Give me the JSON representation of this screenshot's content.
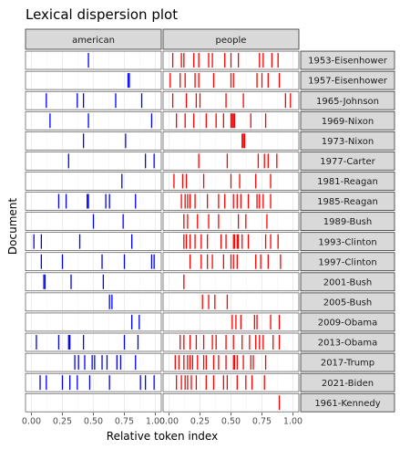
{
  "chart_data": {
    "type": "dispersion",
    "title": "Lexical dispersion plot",
    "xlabel": "Relative token index",
    "ylabel": "Document",
    "xlim": [
      0,
      1
    ],
    "x_ticks": [
      "0.00",
      "0.25",
      "0.50",
      "0.75",
      "1.00"
    ],
    "x_tick_values": [
      0,
      0.25,
      0.5,
      0.75,
      1.0
    ],
    "grid": true,
    "facets": [
      "american",
      "people"
    ],
    "documents": [
      "1953-Eisenhower",
      "1957-Eisenhower",
      "1965-Johnson",
      "1969-Nixon",
      "1973-Nixon",
      "1977-Carter",
      "1981-Reagan",
      "1985-Reagan",
      "1989-Bush",
      "1993-Clinton",
      "1997-Clinton",
      "2001-Bush",
      "2005-Bush",
      "2009-Obama",
      "2013-Obama",
      "2017-Trump",
      "2021-Biden",
      "1961-Kennedy"
    ],
    "series": [
      {
        "facet": "american",
        "color": "#0000ff",
        "occurrences": {
          "1953-Eisenhower": [
            0.46
          ],
          "1957-Eisenhower": [
            0.78,
            0.79
          ],
          "1965-Johnson": [
            0.12,
            0.37,
            0.42,
            0.68,
            0.89
          ],
          "1969-Nixon": [
            0.15,
            0.46,
            0.97
          ],
          "1973-Nixon": [
            0.42,
            0.76
          ],
          "1977-Carter": [
            0.3,
            0.92,
            0.99
          ],
          "1981-Reagan": [
            0.73
          ],
          "1985-Reagan": [
            0.22,
            0.28,
            0.45,
            0.46,
            0.6,
            0.63,
            0.84
          ],
          "1989-Bush": [
            0.5,
            0.74
          ],
          "1993-Clinton": [
            0.02,
            0.08,
            0.39,
            0.81
          ],
          "1997-Clinton": [
            0.08,
            0.25,
            0.57,
            0.75,
            0.97,
            0.99
          ],
          "2001-Bush": [
            0.1,
            0.11,
            0.32,
            0.58
          ],
          "2005-Bush": [
            0.63,
            0.65
          ],
          "2009-Obama": [
            0.81,
            0.87
          ],
          "2013-Obama": [
            0.04,
            0.22,
            0.3,
            0.31,
            0.42,
            0.75,
            0.86
          ],
          "2017-Trump": [
            0.35,
            0.38,
            0.43,
            0.49,
            0.51,
            0.57,
            0.61,
            0.69,
            0.72,
            0.84
          ],
          "2021-Biden": [
            0.07,
            0.12,
            0.25,
            0.31,
            0.37,
            0.47,
            0.63,
            0.88,
            0.92,
            0.99
          ],
          "1961-Kennedy": []
        }
      },
      {
        "facet": "people",
        "color": "#ff0000",
        "occurrences": {
          "1953-Eisenhower": [
            0.03,
            0.1,
            0.12,
            0.2,
            0.24,
            0.32,
            0.35,
            0.45,
            0.5,
            0.56,
            0.73,
            0.76,
            0.83,
            0.88
          ],
          "1957-Eisenhower": [
            0.01,
            0.09,
            0.13,
            0.21,
            0.24,
            0.36,
            0.5,
            0.52,
            0.71,
            0.75,
            0.8,
            0.89
          ],
          "1965-Johnson": [
            0.03,
            0.14,
            0.22,
            0.25,
            0.46,
            0.6,
            0.94,
            0.98
          ],
          "1969-Nixon": [
            0.06,
            0.13,
            0.2,
            0.3,
            0.38,
            0.44,
            0.5,
            0.51,
            0.52,
            0.53,
            0.66,
            0.78
          ],
          "1973-Nixon": [
            0.59,
            0.6,
            0.61
          ],
          "1977-Carter": [
            0.24,
            0.47,
            0.72,
            0.77,
            0.8,
            0.87
          ],
          "1981-Reagan": [
            0.04,
            0.11,
            0.14,
            0.28,
            0.5,
            0.57,
            0.7,
            0.82
          ],
          "1985-Reagan": [
            0.1,
            0.13,
            0.15,
            0.17,
            0.21,
            0.31,
            0.4,
            0.45,
            0.52,
            0.55,
            0.58,
            0.64,
            0.71,
            0.73,
            0.76,
            0.82
          ],
          "1989-Bush": [
            0.12,
            0.15,
            0.23,
            0.32,
            0.4,
            0.56,
            0.62,
            0.79
          ],
          "1993-Clinton": [
            0.12,
            0.14,
            0.17,
            0.21,
            0.26,
            0.31,
            0.42,
            0.46,
            0.52,
            0.53,
            0.55,
            0.56,
            0.59,
            0.64,
            0.78,
            0.82,
            0.88
          ],
          "1997-Clinton": [
            0.17,
            0.26,
            0.31,
            0.35,
            0.44,
            0.5,
            0.52,
            0.55,
            0.7,
            0.74,
            0.8,
            0.9
          ],
          "2001-Bush": [
            0.12
          ],
          "2005-Bush": [
            0.27,
            0.32,
            0.37,
            0.47
          ],
          "2009-Obama": [
            0.51,
            0.54,
            0.58,
            0.69,
            0.71,
            0.82,
            0.89
          ],
          "2013-Obama": [
            0.09,
            0.12,
            0.17,
            0.22,
            0.28,
            0.35,
            0.38,
            0.46,
            0.52,
            0.59,
            0.65,
            0.7,
            0.73,
            0.76,
            0.84,
            0.89
          ],
          "2017-Trump": [
            0.05,
            0.08,
            0.12,
            0.15,
            0.17,
            0.19,
            0.23,
            0.28,
            0.3,
            0.36,
            0.4,
            0.46,
            0.52,
            0.53,
            0.55,
            0.6,
            0.66,
            0.68,
            0.78
          ],
          "2021-Biden": [
            0.06,
            0.1,
            0.13,
            0.15,
            0.18,
            0.22,
            0.3,
            0.36,
            0.44,
            0.47,
            0.55,
            0.62,
            0.67,
            0.77
          ],
          "1961-Kennedy": [
            0.89
          ]
        }
      }
    ]
  }
}
